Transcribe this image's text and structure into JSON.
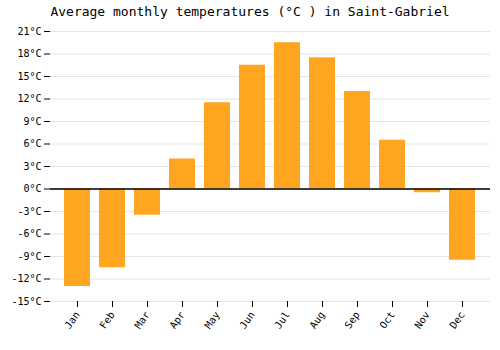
{
  "chart_data": {
    "type": "bar",
    "title": "Average monthly temperatures (°C ) in Saint-Gabriel",
    "categories": [
      "Jan",
      "Feb",
      "Mar",
      "Apr",
      "May",
      "Jun",
      "Jul",
      "Aug",
      "Sep",
      "Oct",
      "Nov",
      "Dec"
    ],
    "values": [
      -13,
      -10.5,
      -3.5,
      4.0,
      11.5,
      16.5,
      19.5,
      17.5,
      13.0,
      6.5,
      -0.5,
      -9.5
    ],
    "color": "#FFA520",
    "ylim": [
      -15,
      21
    ],
    "yticks": [
      {
        "value": -15,
        "label": "-15°C"
      },
      {
        "value": -12,
        "label": "-12°C"
      },
      {
        "value": -9,
        "label": "-9°C"
      },
      {
        "value": -6,
        "label": "-6°C"
      },
      {
        "value": -3,
        "label": "-3°C"
      },
      {
        "value": 0,
        "label": "0°C"
      },
      {
        "value": 3,
        "label": "3°C"
      },
      {
        "value": 6,
        "label": "6°C"
      },
      {
        "value": 9,
        "label": "9°C"
      },
      {
        "value": 12,
        "label": "12°C"
      },
      {
        "value": 15,
        "label": "15°C"
      },
      {
        "value": 18,
        "label": "18°C"
      },
      {
        "value": 21,
        "label": "21°C"
      }
    ],
    "grid": true
  }
}
